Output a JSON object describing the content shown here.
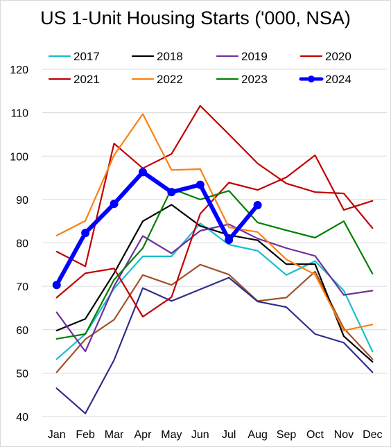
{
  "chart_data": {
    "type": "line",
    "title": "US 1-Unit Housing Starts ('000, NSA)",
    "categories": [
      "Jan",
      "Feb",
      "Mar",
      "Apr",
      "May",
      "Jun",
      "Jul",
      "Aug",
      "Sep",
      "Oct",
      "Nov",
      "Dec"
    ],
    "y_ticks": [
      40,
      50,
      60,
      70,
      80,
      90,
      100,
      110,
      120
    ],
    "ylim": [
      40,
      120
    ],
    "grid": "horizontal",
    "legend_position": "top",
    "series": [
      {
        "name": "2017",
        "color": "#17BECF",
        "width": 2.2,
        "markers": false,
        "values": [
          53.2,
          59.0,
          69.5,
          76.9,
          76.9,
          84.5,
          79.6,
          78.2,
          72.6,
          75.8,
          69.0,
          55.0
        ]
      },
      {
        "name": "2018",
        "color": "#000000",
        "width": 2.2,
        "markers": false,
        "values": [
          59.8,
          62.5,
          73.0,
          85.0,
          88.8,
          83.9,
          81.8,
          80.6,
          75.1,
          75.1,
          58.5,
          52.6
        ]
      },
      {
        "name": "2019",
        "color": "#7030A0",
        "width": 2.2,
        "markers": false,
        "values": [
          64.0,
          55.0,
          70.0,
          81.6,
          77.6,
          82.8,
          84.3,
          81.0,
          78.8,
          77.0,
          68.0,
          69.0
        ]
      },
      {
        "name": "2020",
        "color": "#C00000",
        "width": 2.2,
        "markers": false,
        "values": [
          78.0,
          74.6,
          null,
          null,
          null,
          null,
          null,
          null,
          null,
          null,
          null,
          null
        ]
      },
      {
        "name": "2021",
        "color": "#C00000",
        "width": 2.2,
        "markers": false,
        "values": [
          67.4,
          73.0,
          74.1,
          63.0,
          67.5,
          86.7,
          93.9,
          92.2,
          95.1,
          100.2,
          87.6,
          89.7
        ]
      },
      {
        "name": "2022",
        "color": "#FF7F0E",
        "width": 2.2,
        "markers": false,
        "values": [
          81.7,
          85.1,
          100.2,
          109.7,
          96.8,
          97.0,
          83.6,
          82.5,
          76.2,
          72.7,
          59.8,
          61.2
        ]
      },
      {
        "name": "2023",
        "color": "#008000",
        "width": 2.2,
        "markers": false,
        "values": [
          57.9,
          59.0,
          71.5,
          78.8,
          92.5,
          90.0,
          92.0,
          84.7,
          82.9,
          81.2,
          85.0,
          72.9
        ]
      },
      {
        "name": "2024",
        "color": "#0000FF",
        "width": 6,
        "markers": true,
        "values": [
          70.3,
          82.3,
          89.0,
          96.3,
          91.7,
          93.4,
          80.7,
          88.7,
          null,
          null,
          null,
          null
        ]
      }
    ],
    "unlabeled_series": [
      {
        "color": "#C00000",
        "width": 2.2,
        "values": [
          null,
          74.6,
          102.9,
          97.2,
          100.5,
          111.6,
          105.0,
          98.3,
          93.7,
          91.7,
          91.4,
          83.4
        ]
      },
      {
        "color": "#A0522D",
        "width": 2.2,
        "values": [
          50.2,
          57.8,
          62.3,
          72.6,
          70.3,
          75.0,
          72.7,
          66.6,
          67.4,
          73.4,
          60.3,
          53.2
        ]
      },
      {
        "color": "#2E2E8C",
        "width": 2.2,
        "values": [
          46.5,
          40.7,
          53.0,
          69.6,
          66.6,
          69.3,
          72.0,
          66.5,
          65.2,
          59.0,
          57.0,
          50.2
        ]
      }
    ]
  }
}
